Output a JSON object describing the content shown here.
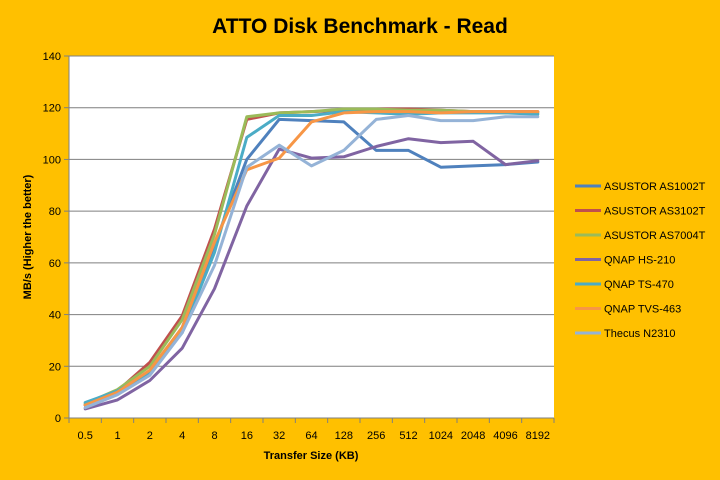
{
  "chart_data": {
    "type": "line",
    "title": "ATTO Disk Benchmark - Read",
    "xlabel": "Transfer Size (KB)",
    "ylabel": "MB/s (Higher the better)",
    "categories": [
      "0.5",
      "1",
      "2",
      "4",
      "8",
      "16",
      "32",
      "64",
      "128",
      "256",
      "512",
      "1024",
      "2048",
      "4096",
      "8192"
    ],
    "ylim": [
      0,
      140
    ],
    "yticks": [
      0,
      20,
      40,
      60,
      80,
      100,
      120,
      140
    ],
    "grid": true,
    "legend_position": "right",
    "series": [
      {
        "name": "ASUSTOR AS1002T",
        "color": "#4F81BD",
        "values": [
          5,
          10,
          18,
          35,
          67,
          100,
          115.5,
          115,
          114.5,
          103.5,
          103.5,
          97,
          97.5,
          98,
          99
        ]
      },
      {
        "name": "ASUSTOR AS3102T",
        "color": "#C0504D",
        "values": [
          5,
          10.5,
          21.5,
          39.5,
          73,
          115.5,
          118,
          118.5,
          119,
          119.5,
          119.5,
          119,
          118.5,
          118.5,
          118.5
        ]
      },
      {
        "name": "ASUSTOR AS7004T",
        "color": "#9BBB59",
        "values": [
          5.5,
          11,
          20,
          38,
          71,
          116.5,
          118,
          118.5,
          119.5,
          119.5,
          119,
          119,
          118.5,
          118,
          118
        ]
      },
      {
        "name": "QNAP HS-210",
        "color": "#8064A2",
        "values": [
          3.5,
          7,
          14.5,
          27,
          50,
          82,
          104,
          100.5,
          101,
          105,
          108,
          106.5,
          107,
          98,
          99.5
        ]
      },
      {
        "name": "QNAP TS-470",
        "color": "#4BACC6",
        "values": [
          6,
          10.5,
          17.5,
          33,
          64,
          108.5,
          117,
          117,
          118.5,
          118,
          117.5,
          118,
          118,
          118,
          117.5
        ]
      },
      {
        "name": "QNAP TVS-463",
        "color": "#F79646",
        "values": [
          5,
          10,
          18.5,
          35,
          68,
          96,
          100.5,
          114.5,
          118,
          118.5,
          118.5,
          118,
          118.5,
          118.5,
          118.5
        ]
      },
      {
        "name": "Thecus N2310",
        "color": "#95B3D7",
        "values": [
          4,
          9,
          16.5,
          33,
          59,
          97,
          105.5,
          97.5,
          103.5,
          115.5,
          117,
          115,
          115,
          116.5,
          116.5
        ]
      }
    ]
  }
}
